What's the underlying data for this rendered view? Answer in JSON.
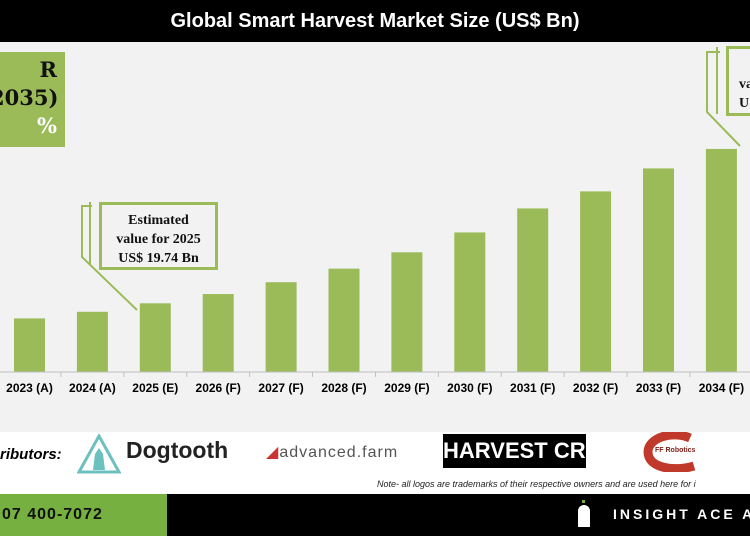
{
  "title": "Global Smart Harvest Market Size (US$ Bn)",
  "cagr_box": {
    "line1": "R",
    "line2": "2035)",
    "line3": "%"
  },
  "callout_2025": {
    "line1": "Estimated",
    "line2": "value for 2025",
    "line3": "US$ 19.74 Bn"
  },
  "callout_right": {
    "line1": "va",
    "line2": "U"
  },
  "colors": {
    "bar": "#9bbb59",
    "title_bg": "#000000",
    "footer_green": "#76b041"
  },
  "chart_data": {
    "type": "bar",
    "title": "Global Smart Harvest Market Size (US$ Bn)",
    "categories": [
      "2023 (A)",
      "2024 (A)",
      "2025 (E)",
      "2026 (F)",
      "2027 (F)",
      "2028 (F)",
      "2029 (F)",
      "2030 (F)",
      "2031 (F)",
      "2032 (F)",
      "2033 (F)",
      "2034 (F)"
    ],
    "values": [
      15.4,
      17.3,
      19.74,
      22.4,
      25.8,
      29.7,
      34.4,
      40.1,
      47.0,
      51.9,
      58.5,
      64.1
    ],
    "grid": false
  },
  "contributors": {
    "label": "ributors:",
    "logos": [
      "Dogtooth",
      "advanced.farm",
      "HARVEST CROO",
      "FF Robotics"
    ]
  },
  "note": "Note- all logos are trademarks of their respective owners and are used here for i",
  "footer": {
    "phone": "07 400-7072",
    "brand": "INSIGHT ACE A"
  }
}
